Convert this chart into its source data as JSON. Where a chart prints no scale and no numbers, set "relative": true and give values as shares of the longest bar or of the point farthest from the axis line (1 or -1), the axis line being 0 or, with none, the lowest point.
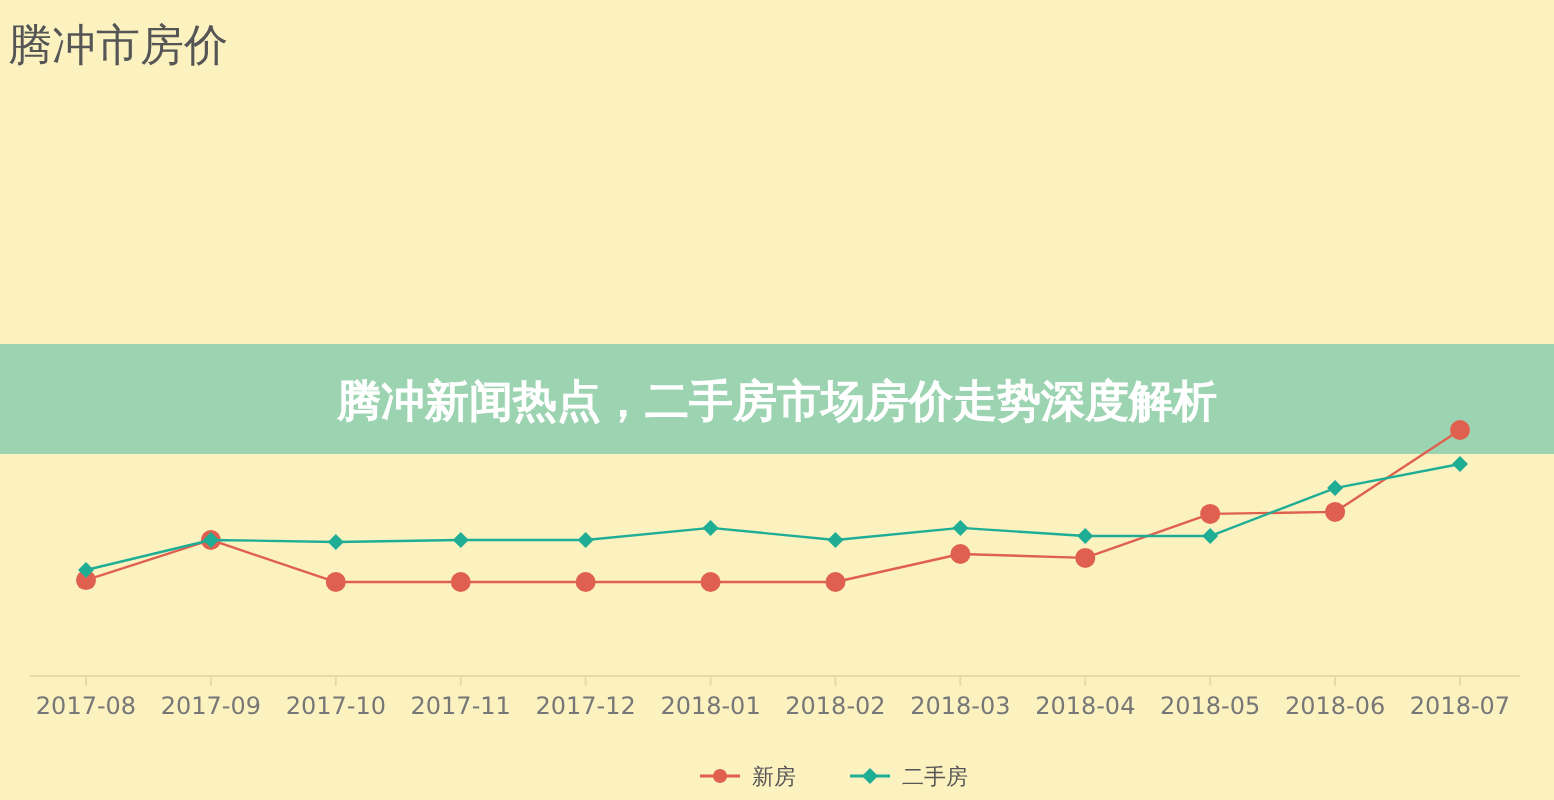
{
  "chart_data": {
    "type": "line",
    "title": "腾冲市房价",
    "subtitle": "腾冲新闻热点，二手房市场房价走势深度解析",
    "relative": true,
    "marker": "circle",
    "legend": "bottom",
    "categories": [
      "2017-08",
      "2017-09",
      "2017-10",
      "2017-11",
      "2017-12",
      "2018-01",
      "2018-02",
      "2018-03",
      "2018-04",
      "2018-05",
      "2018-06",
      "2018-07"
    ],
    "series": [
      {
        "name": "新房",
        "color": "#e0604f",
        "values": [
          0.39,
          0.553,
          0.382,
          0.382,
          0.382,
          0.382,
          0.382,
          0.496,
          0.48,
          0.659,
          0.667,
          1
        ]
      },
      {
        "name": "二手房",
        "color": "#1fae95",
        "marker": "diamond",
        "values": [
          0.431,
          0.553,
          0.545,
          0.553,
          0.553,
          0.602,
          0.553,
          0.602,
          0.569,
          0.569,
          0.764,
          0.862
        ]
      }
    ]
  }
}
